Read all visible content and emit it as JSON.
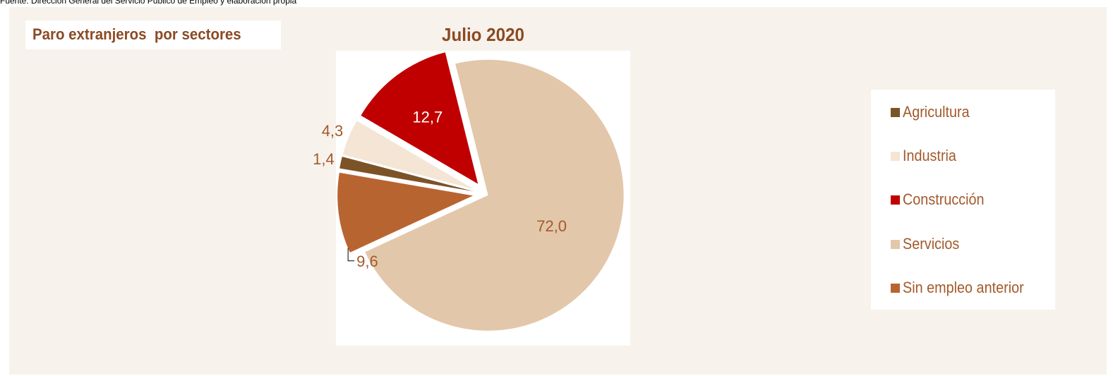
{
  "source_note": "Fuente: Dirección General del Servicio Público de Empleo y elaboración propia",
  "panel_title": "Paro extranjeros  por sectores",
  "chart_data": {
    "type": "pie",
    "title": "Julio 2020",
    "legend_position": "right",
    "categories": [
      "Agricultura",
      "Industria",
      "Construcción",
      "Servicios",
      "Sin empleo anterior"
    ],
    "values": [
      1.4,
      4.3,
      12.7,
      72.0,
      9.6
    ],
    "value_labels": [
      "1,4",
      "4,3",
      "12,7",
      "72,0",
      "9,6"
    ],
    "colors": [
      "#7b5327",
      "#f4e5d5",
      "#c00000",
      "#e3c7aa",
      "#b86431"
    ],
    "exploded": [
      true,
      true,
      true,
      false,
      true
    ]
  },
  "colors": {
    "panel_background": "#f7f2eb",
    "title_text": "#8b4a23",
    "legend_text": "#a35a2c",
    "data_label_dark": "#a35a2c",
    "data_label_light": "#ffffff"
  }
}
